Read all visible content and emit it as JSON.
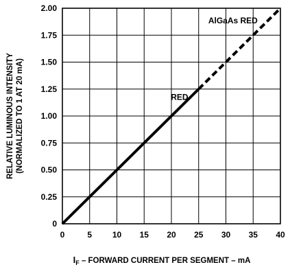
{
  "chart_data": {
    "type": "line",
    "xlabel_main": "I",
    "xlabel_sub": "F",
    "xlabel_rest": " – FORWARD CURRENT PER SEGMENT – mA",
    "ylabel_line1": "RELATIVE LUMINOUS INTENSITY",
    "ylabel_line2": "(NORMALIZED TO 1 AT 20 mA)",
    "xlim": [
      0,
      40
    ],
    "ylim": [
      0,
      2.0
    ],
    "x_ticks": [
      0,
      5,
      10,
      15,
      20,
      25,
      30,
      35,
      40
    ],
    "y_ticks": [
      0,
      0.25,
      0.5,
      0.75,
      1.0,
      1.25,
      1.5,
      1.75,
      2.0
    ],
    "x_tick_labels": [
      "0",
      "5",
      "10",
      "15",
      "20",
      "25",
      "30",
      "35",
      "40"
    ],
    "y_tick_labels": [
      "0",
      "0.25",
      "0.50",
      "0.75",
      "1.00",
      "1.25",
      "1.50",
      "1.75",
      "2.00"
    ],
    "grid": true,
    "series": [
      {
        "name": "RED",
        "style": "solid",
        "x": [
          0,
          25
        ],
        "y": [
          0,
          1.25
        ]
      },
      {
        "name": "AlGaAs RED",
        "style": "dashed",
        "x": [
          25,
          40
        ],
        "y": [
          1.25,
          2.0
        ]
      }
    ],
    "annotations": [
      {
        "text": "RED",
        "x": 21.5,
        "y": 1.15
      },
      {
        "text": "AlGaAs RED",
        "x": 31.3,
        "y": 1.86
      }
    ]
  }
}
